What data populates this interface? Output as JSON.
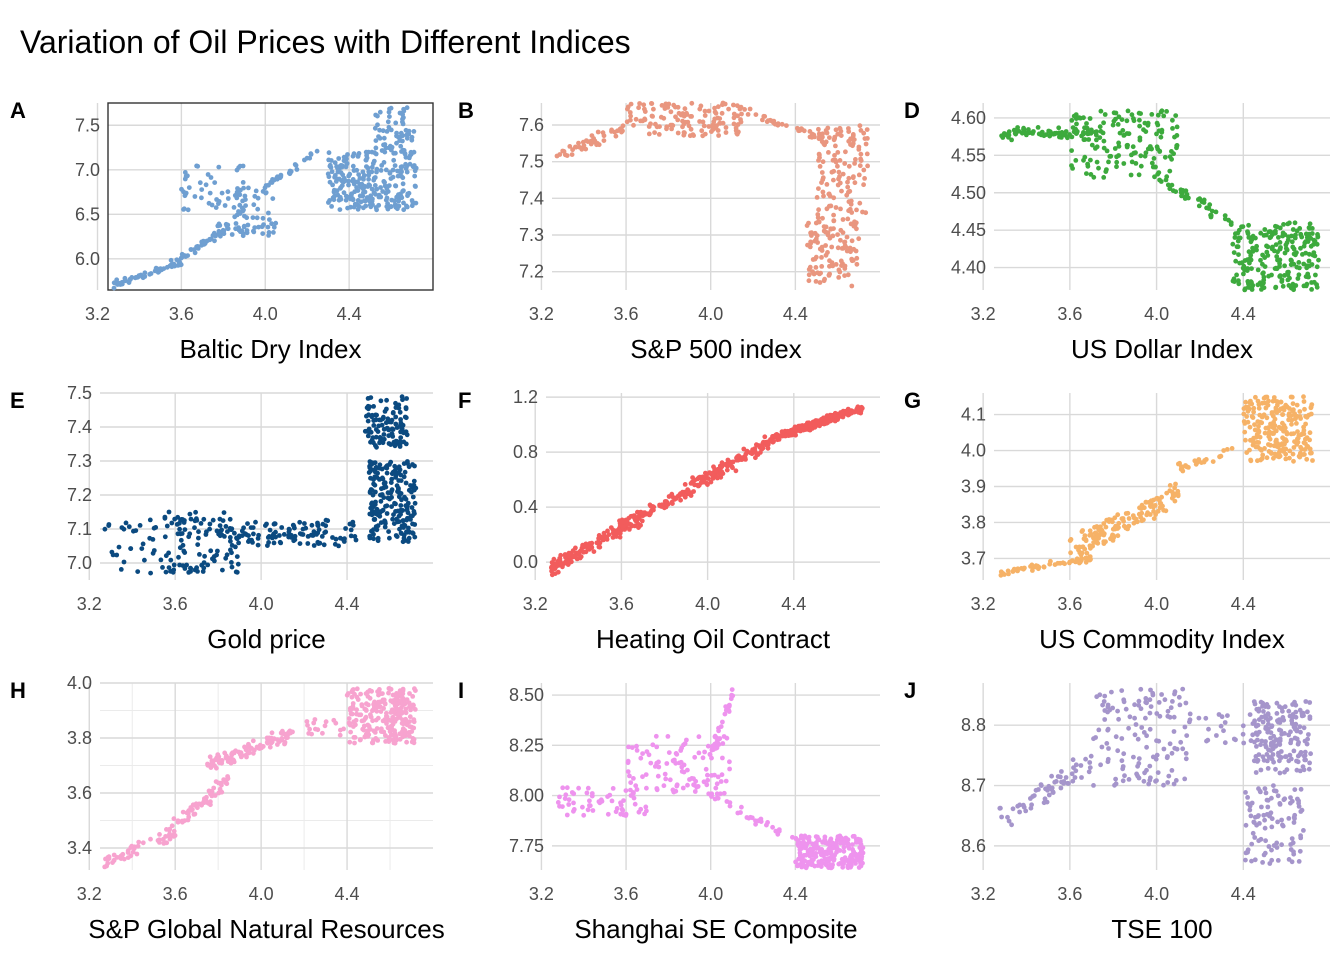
{
  "title": "Variation of Oil Prices with Different Indices",
  "chart_data": [
    {
      "label": "A",
      "type": "scatter",
      "xlabel": "Baltic Dry Index",
      "color": "#6F9FD1",
      "xlim": [
        3.25,
        4.8
      ],
      "ylim": [
        5.65,
        7.75
      ],
      "frame": true,
      "minor_grid": false,
      "xticks": [
        3.2,
        3.6,
        4.0,
        4.4
      ],
      "yticks": [
        6.0,
        6.5,
        7.0,
        7.5
      ],
      "yticklabels": [
        "6.0",
        "6.5",
        "7.0",
        "7.5"
      ],
      "clusters": [
        {
          "x": [
            3.27,
            3.6
          ],
          "y": [
            5.7,
            5.95
          ],
          "n": 50,
          "trend": [
            5.7,
            5.95
          ],
          "noise": 0.05
        },
        {
          "x": [
            3.55,
            3.8
          ],
          "y": [
            5.95,
            6.3
          ],
          "n": 40,
          "trend": [
            5.95,
            6.3
          ],
          "noise": 0.06
        },
        {
          "x": [
            3.6,
            3.9
          ],
          "y": [
            6.55,
            7.05
          ],
          "n": 45,
          "trend": null,
          "noise": 0
        },
        {
          "x": [
            3.75,
            4.05
          ],
          "y": [
            6.25,
            6.4
          ],
          "n": 40,
          "trend": null,
          "noise": 0
        },
        {
          "x": [
            3.85,
            4.05
          ],
          "y": [
            6.4,
            6.8
          ],
          "n": 35,
          "trend": null,
          "noise": 0
        },
        {
          "x": [
            4.0,
            4.25
          ],
          "y": [
            6.8,
            7.2
          ],
          "n": 25,
          "trend": [
            6.8,
            7.2
          ],
          "noise": 0.05
        },
        {
          "x": [
            4.3,
            4.72
          ],
          "y": [
            6.55,
            7.2
          ],
          "n": 260,
          "trend": null,
          "noise": 0
        },
        {
          "x": [
            4.52,
            4.72
          ],
          "y": [
            7.2,
            7.7
          ],
          "n": 60,
          "trend": null,
          "noise": 0
        }
      ]
    },
    {
      "label": "B",
      "type": "scatter",
      "xlabel": "S&P 500 index",
      "color": "#E9967F",
      "xlim": [
        3.25,
        4.8
      ],
      "ylim": [
        7.15,
        7.66
      ],
      "frame": false,
      "minor_grid": false,
      "xticks": [
        3.2,
        3.6,
        4.0,
        4.4
      ],
      "yticks": [
        7.2,
        7.3,
        7.4,
        7.5,
        7.6
      ],
      "yticklabels": [
        "7.2",
        "7.3",
        "7.4",
        "7.5",
        "7.6"
      ],
      "clusters": [
        {
          "x": [
            3.27,
            3.6
          ],
          "y": [
            7.5,
            7.6
          ],
          "n": 45,
          "trend": [
            7.51,
            7.6
          ],
          "noise": 0.02
        },
        {
          "x": [
            3.6,
            4.15
          ],
          "y": [
            7.57,
            7.66
          ],
          "n": 130,
          "trend": null,
          "noise": 0
        },
        {
          "x": [
            4.15,
            4.55
          ],
          "y": [
            7.56,
            7.64
          ],
          "n": 35,
          "trend": [
            7.64,
            7.56
          ],
          "noise": 0.015
        },
        {
          "x": [
            4.5,
            4.75
          ],
          "y": [
            7.35,
            7.6
          ],
          "n": 120,
          "trend": null,
          "noise": 0
        },
        {
          "x": [
            4.45,
            4.7
          ],
          "y": [
            7.16,
            7.35
          ],
          "n": 110,
          "trend": null,
          "noise": 0
        }
      ]
    },
    {
      "label": "D",
      "type": "scatter",
      "xlabel": "US Dollar Index",
      "color": "#3DAA3D",
      "xlim": [
        3.25,
        4.8
      ],
      "ylim": [
        4.37,
        4.62
      ],
      "frame": false,
      "minor_grid": false,
      "xticks": [
        3.2,
        3.6,
        4.0,
        4.4
      ],
      "yticks": [
        4.4,
        4.45,
        4.5,
        4.55,
        4.6
      ],
      "yticklabels": [
        "4.40",
        "4.45",
        "4.50",
        "4.55",
        "4.60"
      ],
      "clusters": [
        {
          "x": [
            3.27,
            3.7
          ],
          "y": [
            4.56,
            4.6
          ],
          "n": 70,
          "trend": [
            4.58,
            4.58
          ],
          "noise": 0.01
        },
        {
          "x": [
            3.6,
            4.1
          ],
          "y": [
            4.52,
            4.61
          ],
          "n": 150,
          "trend": null,
          "noise": 0
        },
        {
          "x": [
            4.0,
            4.35
          ],
          "y": [
            4.45,
            4.52
          ],
          "n": 40,
          "trend": [
            4.52,
            4.46
          ],
          "noise": 0.01
        },
        {
          "x": [
            4.35,
            4.75
          ],
          "y": [
            4.37,
            4.46
          ],
          "n": 230,
          "trend": null,
          "noise": 0
        }
      ]
    },
    {
      "label": "E",
      "type": "scatter",
      "xlabel": "Gold price",
      "color": "#0B4A80",
      "xlim": [
        3.25,
        4.8
      ],
      "ylim": [
        6.95,
        7.5
      ],
      "frame": false,
      "minor_grid": false,
      "xticks": [
        3.2,
        3.6,
        4.0,
        4.4
      ],
      "yticks": [
        7.0,
        7.1,
        7.2,
        7.3,
        7.4,
        7.5
      ],
      "yticklabels": [
        "7.0",
        "7.1",
        "7.2",
        "7.3",
        "7.4",
        "7.5"
      ],
      "clusters": [
        {
          "x": [
            3.27,
            3.65
          ],
          "y": [
            6.97,
            7.13
          ],
          "n": 50,
          "trend": null,
          "noise": 0
        },
        {
          "x": [
            3.55,
            3.9
          ],
          "y": [
            6.97,
            7.15
          ],
          "n": 90,
          "trend": null,
          "noise": 0
        },
        {
          "x": [
            3.85,
            4.3
          ],
          "y": [
            7.05,
            7.12
          ],
          "n": 90,
          "trend": null,
          "noise": 0
        },
        {
          "x": [
            4.3,
            4.45
          ],
          "y": [
            7.05,
            7.14
          ],
          "n": 20,
          "trend": null,
          "noise": 0
        },
        {
          "x": [
            4.5,
            4.72
          ],
          "y": [
            7.06,
            7.3
          ],
          "n": 210,
          "trend": null,
          "noise": 0
        },
        {
          "x": [
            4.48,
            4.68
          ],
          "y": [
            7.34,
            7.49
          ],
          "n": 110,
          "trend": null,
          "noise": 0
        }
      ]
    },
    {
      "label": "F",
      "type": "scatter",
      "xlabel": "Heating Oil Contract",
      "color": "#F25C5C",
      "xlim": [
        3.25,
        4.8
      ],
      "ylim": [
        -0.13,
        1.23
      ],
      "frame": false,
      "minor_grid": false,
      "xticks": [
        3.2,
        3.6,
        4.0,
        4.4
      ],
      "yticks": [
        0.0,
        0.4,
        0.8,
        1.2
      ],
      "yticklabels": [
        "0.0",
        "0.4",
        "0.8",
        "1.2"
      ],
      "clusters": [
        {
          "x": [
            3.27,
            4.3
          ],
          "y": [
            -0.12,
            0.9
          ],
          "n": 330,
          "trend": [
            -0.05,
            0.88
          ],
          "noise": 0.07
        },
        {
          "x": [
            4.3,
            4.72
          ],
          "y": [
            0.85,
            1.17
          ],
          "n": 230,
          "trend": [
            0.9,
            1.12
          ],
          "noise": 0.035
        }
      ]
    },
    {
      "label": "G",
      "type": "scatter",
      "xlabel": "US Commodity Index",
      "color": "#F6B267",
      "xlim": [
        3.25,
        4.8
      ],
      "ylim": [
        3.64,
        4.16
      ],
      "frame": false,
      "minor_grid": false,
      "xticks": [
        3.2,
        3.6,
        4.0,
        4.4
      ],
      "yticks": [
        3.7,
        3.8,
        3.9,
        4.0,
        4.1
      ],
      "yticklabels": [
        "3.7",
        "3.8",
        "3.9",
        "4.0",
        "4.1"
      ],
      "clusters": [
        {
          "x": [
            3.27,
            3.7
          ],
          "y": [
            3.65,
            3.7
          ],
          "n": 60,
          "trend": [
            3.66,
            3.7
          ],
          "noise": 0.01
        },
        {
          "x": [
            3.6,
            4.1
          ],
          "y": [
            3.7,
            3.92
          ],
          "n": 140,
          "trend": [
            3.72,
            3.88
          ],
          "noise": 0.04
        },
        {
          "x": [
            4.1,
            4.4
          ],
          "y": [
            3.93,
            4.02
          ],
          "n": 25,
          "trend": [
            3.95,
            4.01
          ],
          "noise": 0.015
        },
        {
          "x": [
            4.4,
            4.72
          ],
          "y": [
            3.97,
            4.15
          ],
          "n": 230,
          "trend": null,
          "noise": 0
        }
      ]
    },
    {
      "label": "H",
      "type": "scatter",
      "xlabel": "S&P Global Natural Resources",
      "color": "#F7A3CF",
      "xlim": [
        3.25,
        4.8
      ],
      "ylim": [
        3.32,
        4.0
      ],
      "frame": false,
      "minor_grid": true,
      "xticks": [
        3.2,
        3.6,
        4.0,
        4.4
      ],
      "yticks": [
        3.4,
        3.6,
        3.8,
        4.0
      ],
      "yticklabels": [
        "3.4",
        "3.6",
        "3.8",
        "4.0"
      ],
      "clusters": [
        {
          "x": [
            3.27,
            3.6
          ],
          "y": [
            3.33,
            3.45
          ],
          "n": 50,
          "trend": [
            3.35,
            3.45
          ],
          "noise": 0.03
        },
        {
          "x": [
            3.55,
            3.85
          ],
          "y": [
            3.45,
            3.65
          ],
          "n": 60,
          "trend": [
            3.45,
            3.65
          ],
          "noise": 0.04
        },
        {
          "x": [
            3.75,
            4.15
          ],
          "y": [
            3.65,
            3.83
          ],
          "n": 110,
          "trend": [
            3.7,
            3.82
          ],
          "noise": 0.03
        },
        {
          "x": [
            4.2,
            4.45
          ],
          "y": [
            3.81,
            3.87
          ],
          "n": 20,
          "trend": null,
          "noise": 0
        },
        {
          "x": [
            4.4,
            4.72
          ],
          "y": [
            3.78,
            3.98
          ],
          "n": 240,
          "trend": null,
          "noise": 0
        }
      ]
    },
    {
      "label": "I",
      "type": "scatter",
      "xlabel": "Shanghai SE Composite",
      "color": "#EE93EE",
      "xlim": [
        3.25,
        4.8
      ],
      "ylim": [
        7.63,
        8.56
      ],
      "frame": false,
      "minor_grid": false,
      "xticks": [
        3.2,
        3.6,
        4.0,
        4.4
      ],
      "yticks": [
        7.75,
        8.0,
        8.25,
        8.5
      ],
      "yticklabels": [
        "7.75",
        "8.00",
        "8.25",
        "8.50"
      ],
      "clusters": [
        {
          "x": [
            3.27,
            3.7
          ],
          "y": [
            7.9,
            8.04
          ],
          "n": 60,
          "trend": null,
          "noise": 0
        },
        {
          "x": [
            3.6,
            4.1
          ],
          "y": [
            8.0,
            8.3
          ],
          "n": 110,
          "trend": null,
          "noise": 0
        },
        {
          "x": [
            4.0,
            4.12
          ],
          "y": [
            8.2,
            8.55
          ],
          "n": 30,
          "trend": [
            8.2,
            8.55
          ],
          "noise": 0.05
        },
        {
          "x": [
            4.0,
            4.4
          ],
          "y": [
            7.78,
            8.0
          ],
          "n": 30,
          "trend": [
            8.0,
            7.78
          ],
          "noise": 0.03
        },
        {
          "x": [
            4.4,
            4.72
          ],
          "y": [
            7.64,
            7.8
          ],
          "n": 240,
          "trend": null,
          "noise": 0
        }
      ]
    },
    {
      "label": "J",
      "type": "scatter",
      "xlabel": "TSE 100",
      "color": "#A595CB",
      "xlim": [
        3.25,
        4.8
      ],
      "ylim": [
        8.56,
        8.87
      ],
      "frame": false,
      "minor_grid": false,
      "xticks": [
        3.2,
        3.6,
        4.0,
        4.4
      ],
      "yticks": [
        8.6,
        8.7,
        8.8
      ],
      "yticklabels": [
        "8.6",
        "8.7",
        "8.8"
      ],
      "clusters": [
        {
          "x": [
            3.27,
            3.7
          ],
          "y": [
            8.62,
            8.74
          ],
          "n": 60,
          "trend": [
            8.64,
            8.74
          ],
          "noise": 0.025
        },
        {
          "x": [
            3.7,
            4.15
          ],
          "y": [
            8.7,
            8.86
          ],
          "n": 130,
          "trend": null,
          "noise": 0
        },
        {
          "x": [
            4.15,
            4.45
          ],
          "y": [
            8.77,
            8.82
          ],
          "n": 25,
          "trend": null,
          "noise": 0
        },
        {
          "x": [
            4.45,
            4.72
          ],
          "y": [
            8.72,
            8.84
          ],
          "n": 170,
          "trend": null,
          "noise": 0
        },
        {
          "x": [
            4.4,
            4.68
          ],
          "y": [
            8.57,
            8.7
          ],
          "n": 100,
          "trend": null,
          "noise": 0
        }
      ]
    }
  ]
}
